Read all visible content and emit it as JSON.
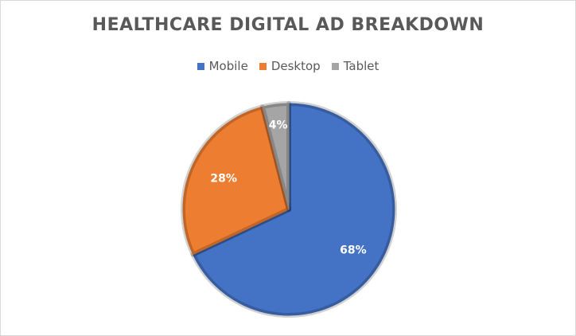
{
  "chart_data": {
    "type": "pie",
    "title": "HEALTHCARE DIGITAL AD BREAKDOWN",
    "categories": [
      "Mobile",
      "Desktop",
      "Tablet"
    ],
    "values": [
      68,
      28,
      4
    ],
    "data_labels": [
      "68%",
      "28%",
      "4%"
    ],
    "colors": [
      "#4472C4",
      "#ED7D31",
      "#A5A5A5"
    ],
    "legend_position": "top",
    "start_angle": "12 o'clock, clockwise"
  }
}
